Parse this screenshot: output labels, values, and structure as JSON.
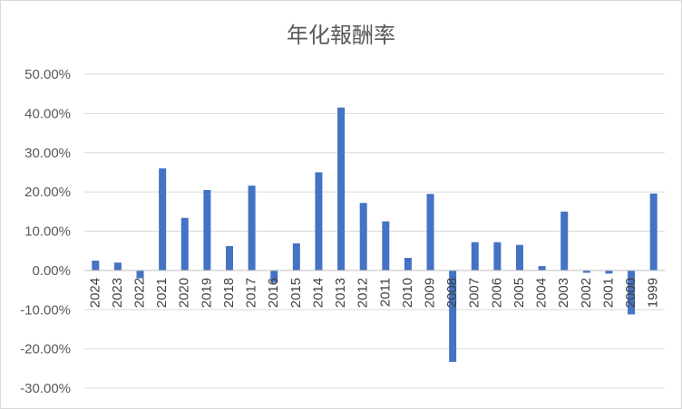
{
  "chart_data": {
    "type": "bar",
    "title": "年化報酬率",
    "xlabel": "",
    "ylabel": "",
    "ylim": [
      -0.3,
      0.5
    ],
    "y_ticks": [
      0.5,
      0.4,
      0.3,
      0.2,
      0.1,
      0.0,
      -0.1,
      -0.2,
      -0.3
    ],
    "y_tick_labels": [
      "50.00%",
      "40.00%",
      "30.00%",
      "20.00%",
      "10.00%",
      "0.00%",
      "-10.00%",
      "-20.00%",
      "-30.00%"
    ],
    "grid": true,
    "legend": "none",
    "bar_color": "#4472C4",
    "categories": [
      "2024",
      "2023",
      "2022",
      "2021",
      "2020",
      "2019",
      "2018",
      "2017",
      "2016",
      "2015",
      "2014",
      "2013",
      "2012",
      "2011",
      "2010",
      "2009",
      "2008",
      "2007",
      "2006",
      "2005",
      "2004",
      "2003",
      "2002",
      "2001",
      "2000",
      "1999"
    ],
    "values": [
      0.025,
      0.02,
      -0.02,
      0.26,
      0.134,
      0.205,
      0.062,
      0.216,
      -0.031,
      0.069,
      0.25,
      0.415,
      0.172,
      0.125,
      0.032,
      0.195,
      -0.233,
      0.072,
      0.072,
      0.065,
      0.011,
      0.15,
      -0.006,
      -0.008,
      -0.112,
      0.196
    ]
  }
}
